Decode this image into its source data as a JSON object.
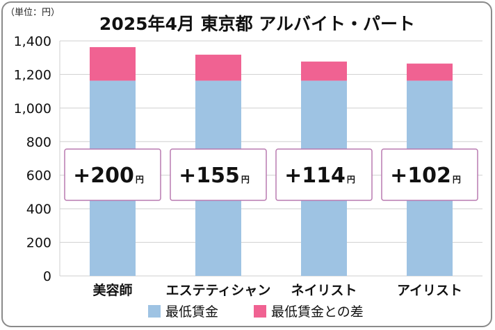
{
  "unit_label": "（単位：円）",
  "chart_data": {
    "type": "bar",
    "stacked": true,
    "title": "2025年4月 東京都 アルバイト・パート",
    "categories": [
      "美容師",
      "エステティシャン",
      "ネイリスト",
      "アイリスト"
    ],
    "series": [
      {
        "name": "最低賃金",
        "values": [
          1163,
          1163,
          1163,
          1163
        ],
        "color": "#9ec3e3"
      },
      {
        "name": "最低賃金との差",
        "values": [
          200,
          155,
          114,
          102
        ],
        "color": "#f06292"
      }
    ],
    "difference_labels": [
      {
        "sign": "+",
        "value": "200",
        "unit": "円"
      },
      {
        "sign": "+",
        "value": "155",
        "unit": "円"
      },
      {
        "sign": "+",
        "value": "114",
        "unit": "円"
      },
      {
        "sign": "+",
        "value": "102",
        "unit": "円"
      }
    ],
    "ylim": [
      0,
      1400
    ],
    "yticks": [
      "0",
      "200",
      "400",
      "600",
      "800",
      "1,000",
      "1,200",
      "1,400"
    ],
    "grid": true,
    "legend": "bottom"
  }
}
